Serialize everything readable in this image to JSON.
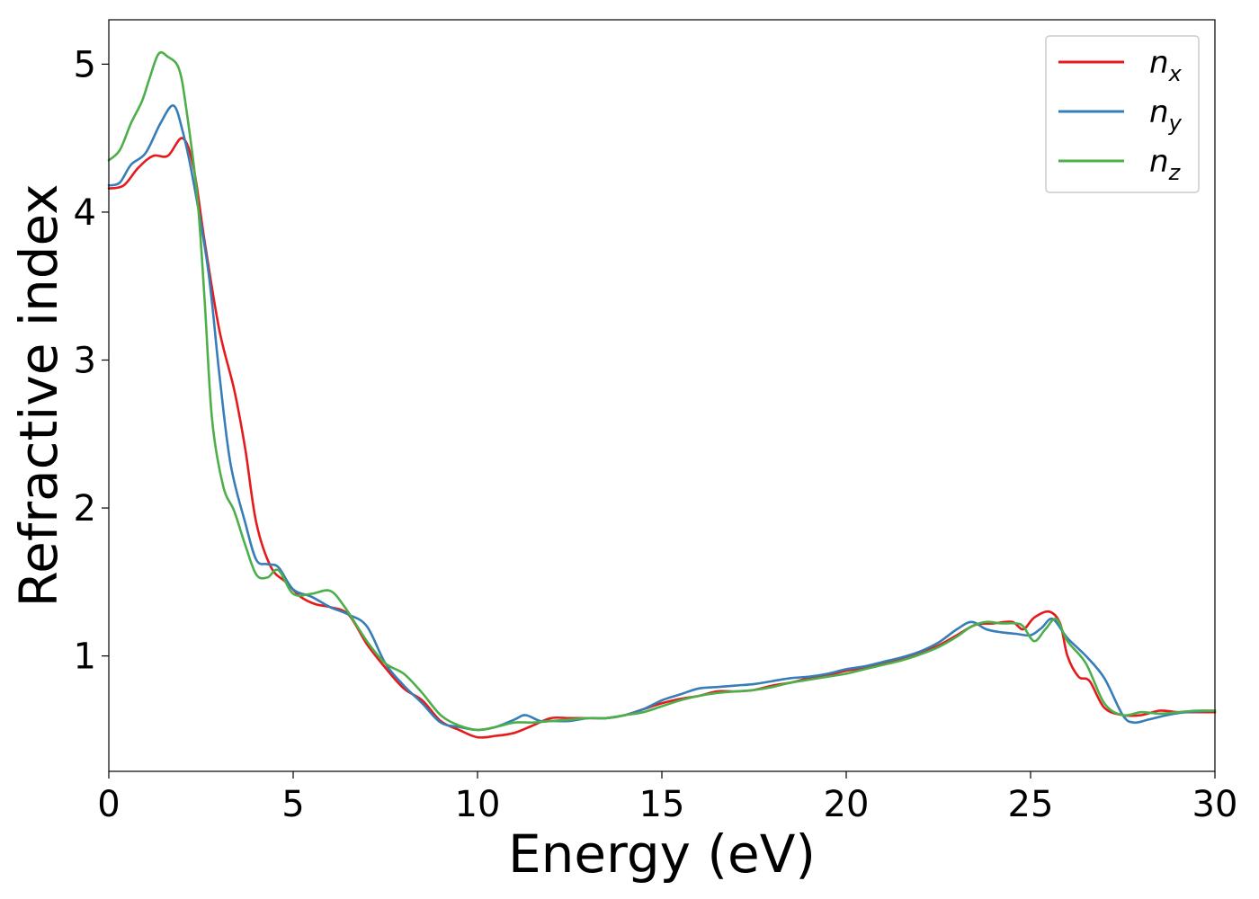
{
  "chart_data": {
    "type": "line",
    "xlabel": "Energy (eV)",
    "ylabel": "Refractive index",
    "xlim": [
      0,
      30
    ],
    "ylim": [
      0.22,
      5.3
    ],
    "xticks": [
      "0",
      "5",
      "10",
      "15",
      "20",
      "25",
      "30"
    ],
    "yticks": [
      "1",
      "2",
      "3",
      "4",
      "5"
    ],
    "grid": false,
    "legend_position": "top-right",
    "series": [
      {
        "name": "n",
        "subscript": "x",
        "color": "#e41a1c",
        "x": [
          0,
          0.4,
          0.8,
          1.2,
          1.6,
          2.0,
          2.3,
          2.6,
          3.0,
          3.4,
          3.7,
          4.0,
          4.4,
          4.8,
          5.2,
          5.6,
          6.0,
          6.5,
          7.0,
          7.5,
          8.0,
          8.5,
          9.0,
          9.5,
          10.0,
          10.5,
          11.0,
          11.5,
          12.0,
          12.5,
          13.0,
          13.5,
          14.0,
          14.5,
          15.0,
          15.5,
          16.0,
          16.5,
          17.0,
          17.5,
          18.0,
          18.5,
          19.0,
          19.5,
          20.0,
          20.5,
          21.0,
          21.5,
          22.0,
          22.5,
          23.0,
          23.5,
          24.0,
          24.5,
          24.8,
          25.1,
          25.5,
          25.8,
          26.0,
          26.3,
          26.6,
          27.0,
          27.5,
          28.0,
          28.5,
          29.0,
          29.5,
          30.0
        ],
        "y": [
          4.16,
          4.18,
          4.3,
          4.38,
          4.38,
          4.5,
          4.3,
          3.8,
          3.2,
          2.8,
          2.4,
          1.9,
          1.6,
          1.5,
          1.4,
          1.35,
          1.33,
          1.28,
          1.08,
          0.92,
          0.78,
          0.7,
          0.56,
          0.5,
          0.45,
          0.46,
          0.48,
          0.53,
          0.58,
          0.58,
          0.58,
          0.58,
          0.6,
          0.64,
          0.68,
          0.71,
          0.73,
          0.76,
          0.76,
          0.77,
          0.8,
          0.82,
          0.85,
          0.87,
          0.9,
          0.92,
          0.95,
          0.98,
          1.02,
          1.07,
          1.14,
          1.21,
          1.22,
          1.23,
          1.18,
          1.26,
          1.3,
          1.22,
          1.0,
          0.86,
          0.83,
          0.65,
          0.6,
          0.6,
          0.63,
          0.62,
          0.62,
          0.62
        ]
      },
      {
        "name": "n",
        "subscript": "y",
        "color": "#377eb8",
        "x": [
          0,
          0.3,
          0.6,
          1.0,
          1.4,
          1.75,
          2.0,
          2.3,
          2.7,
          3.0,
          3.3,
          3.7,
          4.0,
          4.3,
          4.6,
          5.0,
          5.5,
          6.0,
          6.5,
          7.0,
          7.5,
          8.0,
          8.5,
          9.0,
          9.5,
          10.0,
          10.5,
          11.0,
          11.3,
          11.7,
          12.0,
          12.5,
          13.0,
          13.5,
          14.0,
          14.5,
          15.0,
          15.5,
          16.0,
          16.5,
          17.0,
          17.5,
          18.0,
          18.5,
          19.0,
          19.5,
          20.0,
          20.5,
          21.0,
          21.5,
          22.0,
          22.5,
          23.0,
          23.4,
          23.8,
          24.2,
          24.6,
          25.0,
          25.3,
          25.6,
          26.0,
          26.5,
          27.0,
          27.5,
          27.8,
          28.2,
          28.7,
          29.2,
          30.0
        ],
        "y": [
          4.18,
          4.2,
          4.32,
          4.4,
          4.6,
          4.72,
          4.55,
          4.2,
          3.6,
          2.9,
          2.3,
          1.9,
          1.65,
          1.62,
          1.6,
          1.45,
          1.4,
          1.33,
          1.28,
          1.2,
          0.95,
          0.8,
          0.68,
          0.55,
          0.52,
          0.5,
          0.52,
          0.57,
          0.6,
          0.56,
          0.56,
          0.56,
          0.58,
          0.58,
          0.6,
          0.64,
          0.7,
          0.74,
          0.78,
          0.79,
          0.8,
          0.81,
          0.83,
          0.85,
          0.86,
          0.88,
          0.91,
          0.93,
          0.96,
          0.99,
          1.03,
          1.09,
          1.18,
          1.23,
          1.18,
          1.16,
          1.15,
          1.14,
          1.19,
          1.25,
          1.12,
          1.0,
          0.85,
          0.6,
          0.55,
          0.57,
          0.6,
          0.62,
          0.63
        ]
      },
      {
        "name": "n",
        "subscript": "z",
        "color": "#4daf4a",
        "x": [
          0,
          0.3,
          0.6,
          0.9,
          1.1,
          1.35,
          1.6,
          1.9,
          2.1,
          2.4,
          2.6,
          2.8,
          3.1,
          3.4,
          3.7,
          4.0,
          4.3,
          4.6,
          5.0,
          5.5,
          6.0,
          6.4,
          7.0,
          7.5,
          8.0,
          8.5,
          9.0,
          9.5,
          10.0,
          10.5,
          11.0,
          11.5,
          12.0,
          12.5,
          13.0,
          13.5,
          14.0,
          14.5,
          15.0,
          15.5,
          16.0,
          16.5,
          17.0,
          17.5,
          18.0,
          18.5,
          19.0,
          19.5,
          20.0,
          20.5,
          21.0,
          21.5,
          22.0,
          22.5,
          23.0,
          23.4,
          23.8,
          24.2,
          24.6,
          24.8,
          25.1,
          25.4,
          25.7,
          26.0,
          26.5,
          27.0,
          27.5,
          28.0,
          28.5,
          29.0,
          29.5,
          30.0
        ],
        "y": [
          4.35,
          4.42,
          4.6,
          4.75,
          4.9,
          5.07,
          5.05,
          4.97,
          4.7,
          4.1,
          3.4,
          2.6,
          2.15,
          1.98,
          1.75,
          1.55,
          1.53,
          1.58,
          1.42,
          1.42,
          1.44,
          1.33,
          1.1,
          0.95,
          0.88,
          0.75,
          0.6,
          0.53,
          0.5,
          0.52,
          0.55,
          0.55,
          0.56,
          0.57,
          0.58,
          0.58,
          0.6,
          0.62,
          0.66,
          0.7,
          0.73,
          0.75,
          0.76,
          0.77,
          0.79,
          0.82,
          0.84,
          0.86,
          0.88,
          0.91,
          0.94,
          0.97,
          1.01,
          1.06,
          1.13,
          1.2,
          1.23,
          1.22,
          1.22,
          1.2,
          1.1,
          1.18,
          1.25,
          1.1,
          0.95,
          0.68,
          0.6,
          0.62,
          0.61,
          0.62,
          0.63,
          0.63
        ]
      }
    ]
  }
}
